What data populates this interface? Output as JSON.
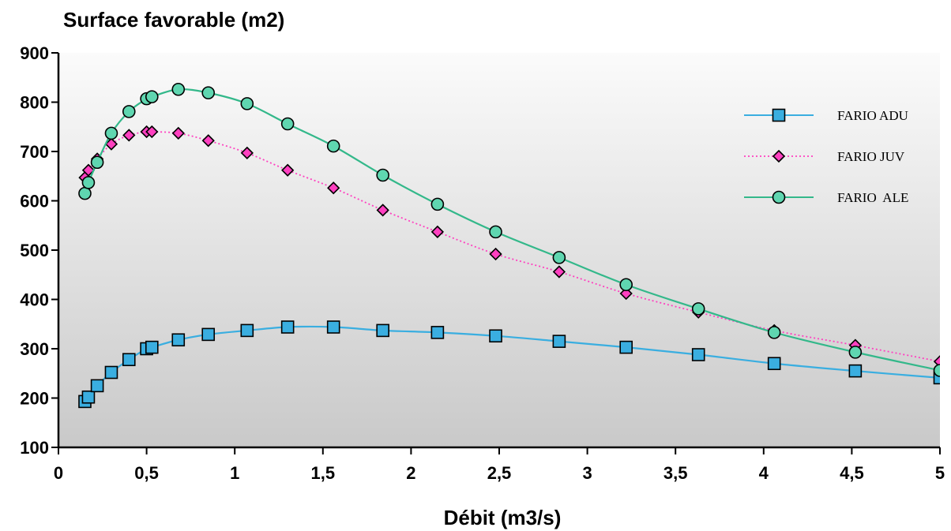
{
  "chart_data": {
    "type": "line",
    "title": "",
    "ylabel": "Surface favorable (m2)",
    "xlabel": "Débit (m3/s)",
    "xlim": [
      0,
      5
    ],
    "ylim": [
      100,
      900
    ],
    "xticks": [
      0,
      0.5,
      1,
      1.5,
      2,
      2.5,
      3,
      3.5,
      4,
      4.5,
      5
    ],
    "xtick_labels": [
      "0",
      "0,5",
      "1",
      "1,5",
      "2",
      "2,5",
      "3",
      "3,5",
      "4",
      "4,5",
      "5"
    ],
    "yticks": [
      100,
      200,
      300,
      400,
      500,
      600,
      700,
      800,
      900
    ],
    "ytick_labels": [
      "100",
      "200",
      "300",
      "400",
      "500",
      "600",
      "700",
      "800",
      "900"
    ],
    "grid": false,
    "legend_position": "top-right",
    "background_gradient": [
      "#fbfbfb",
      "#c9c9c9"
    ],
    "x": [
      0.15,
      0.17,
      0.22,
      0.3,
      0.4,
      0.5,
      0.53,
      0.68,
      0.85,
      1.07,
      1.3,
      1.56,
      1.84,
      2.15,
      2.48,
      2.84,
      3.22,
      3.63,
      4.06,
      4.52,
      5.0
    ],
    "series": [
      {
        "name": "FARIO ADU",
        "marker": "square",
        "line_style": "solid",
        "line_color": "#3aaee0",
        "marker_fill": "#3aaee0",
        "values": [
          193,
          202,
          225,
          252,
          278,
          300,
          303,
          318,
          329,
          337,
          344,
          344,
          337,
          333,
          326,
          315,
          303,
          288,
          270,
          255,
          241
        ]
      },
      {
        "name": "FARIO JUV",
        "marker": "diamond",
        "line_style": "dotted",
        "line_color": "#ff40c0",
        "marker_fill": "#ff40c0",
        "values": [
          647,
          662,
          685,
          715,
          733,
          740,
          740,
          737,
          722,
          697,
          662,
          626,
          581,
          537,
          492,
          456,
          412,
          374,
          337,
          307,
          274
        ]
      },
      {
        "name": "FARIO  ALE",
        "marker": "circle",
        "line_style": "solid",
        "line_color": "#33b88a",
        "marker_fill": "#5fd6b0",
        "values": [
          615,
          637,
          678,
          737,
          781,
          807,
          811,
          826,
          819,
          797,
          756,
          711,
          652,
          593,
          537,
          485,
          430,
          381,
          333,
          293,
          256
        ]
      }
    ]
  }
}
